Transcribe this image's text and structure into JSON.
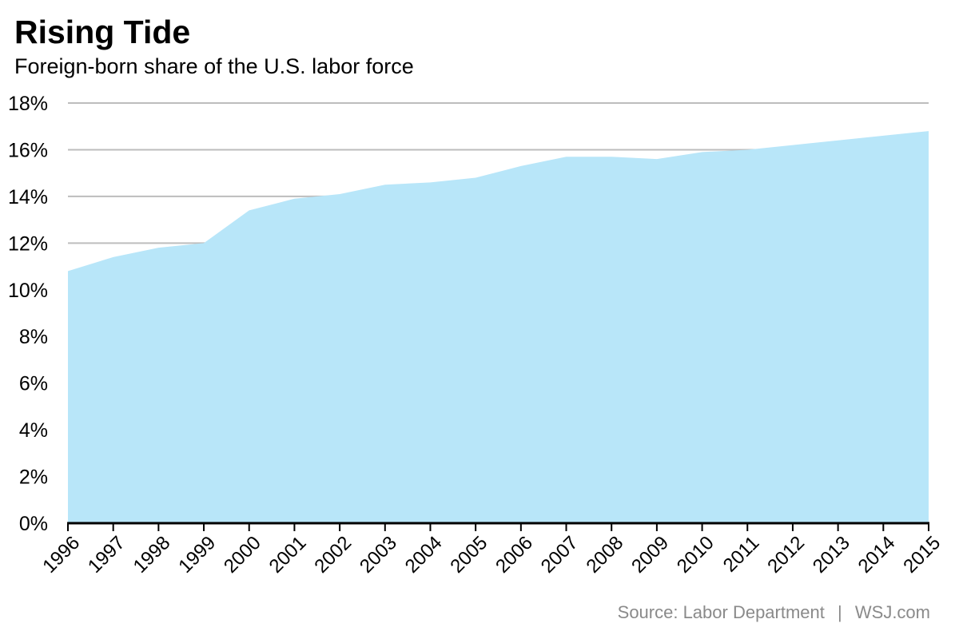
{
  "header": {
    "title": "Rising Tide",
    "subtitle": "Foreign-born share of the U.S. labor force"
  },
  "footer": {
    "source": "Source: Labor Department",
    "separator": "|",
    "publisher": "WSJ.com"
  },
  "colors": {
    "area_fill": "#b8e6f9",
    "gridline": "#bdbdbd",
    "axis": "#000000",
    "footer_text": "#8a8a8a"
  },
  "chart_data": {
    "type": "area",
    "title": "Rising Tide",
    "subtitle": "Foreign-born share of the U.S. labor force",
    "xlabel": "",
    "ylabel": "",
    "x": [
      "1996",
      "1997",
      "1998",
      "1999",
      "2000",
      "2001",
      "2002",
      "2003",
      "2004",
      "2005",
      "2006",
      "2007",
      "2008",
      "2009",
      "2010",
      "2011",
      "2012",
      "2013",
      "2014",
      "2015"
    ],
    "values": [
      10.8,
      11.4,
      11.8,
      12.0,
      13.4,
      13.9,
      14.1,
      14.5,
      14.6,
      14.8,
      15.3,
      15.7,
      15.7,
      15.6,
      15.9,
      16.0,
      16.2,
      16.4,
      16.6,
      16.8
    ],
    "ylim": [
      0,
      18
    ],
    "yticks": [
      0,
      2,
      4,
      6,
      8,
      10,
      12,
      14,
      16,
      18
    ],
    "yticklabels": [
      "0%",
      "2%",
      "4%",
      "6%",
      "8%",
      "10%",
      "12%",
      "14%",
      "16%",
      "18%"
    ],
    "grid": true,
    "legend": "none"
  }
}
